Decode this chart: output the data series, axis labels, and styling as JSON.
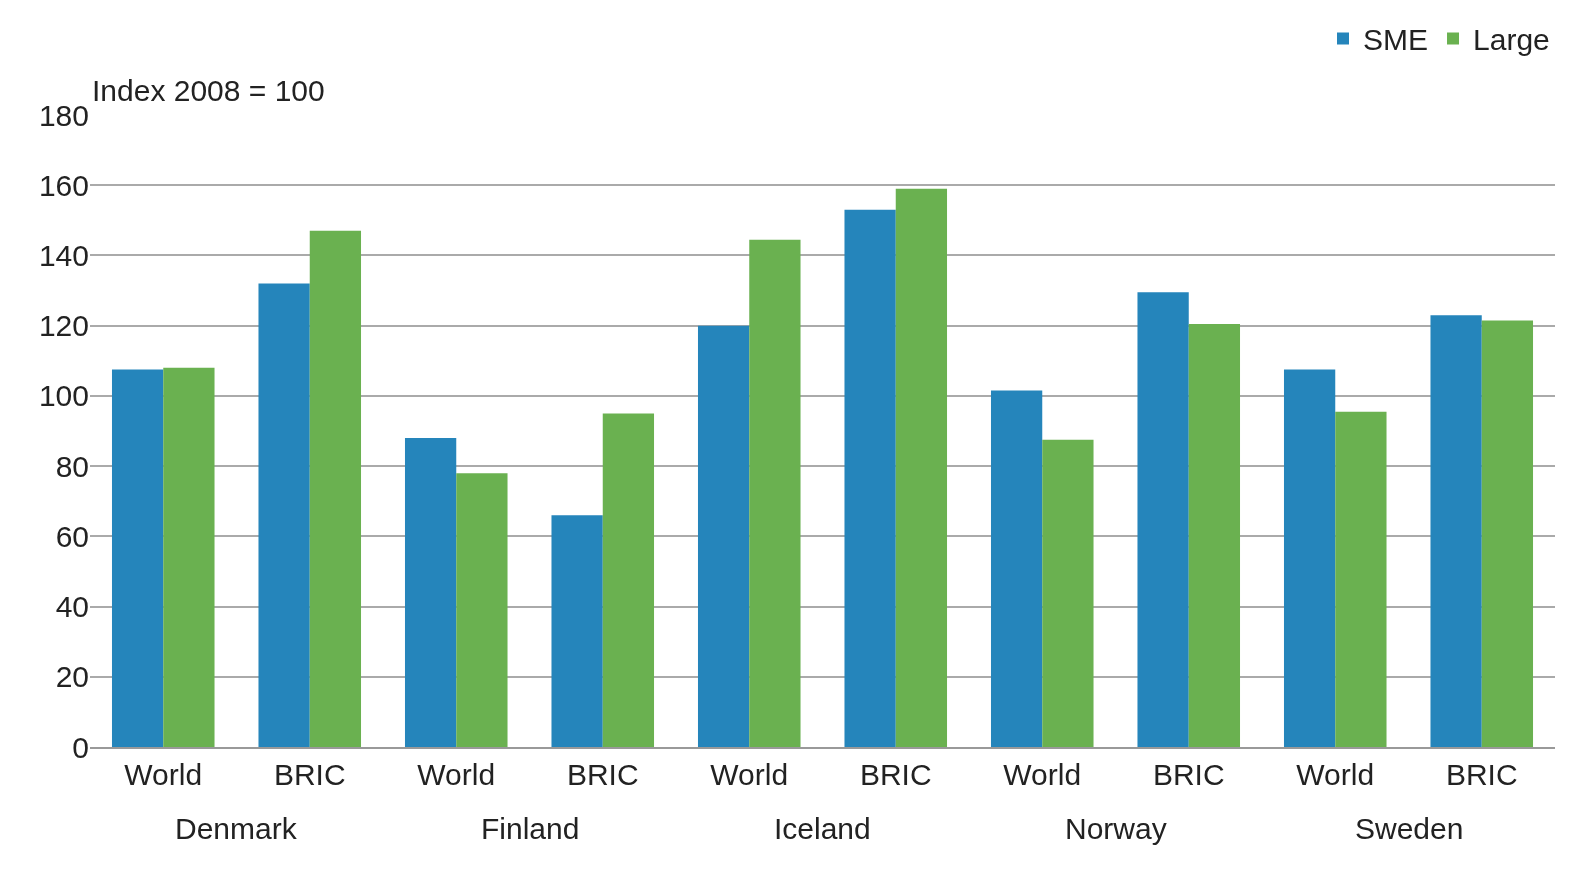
{
  "chart_data": {
    "type": "bar",
    "ylabel": "Index 2008 = 100",
    "categories": [
      "World",
      "BRIC",
      "World",
      "BRIC",
      "World",
      "BRIC",
      "World",
      "BRIC",
      "World",
      "BRIC"
    ],
    "series": [
      {
        "name": "SME",
        "color": "#2585bb",
        "values": [
          107.5,
          132,
          88,
          66,
          120,
          153,
          101.5,
          129.5,
          107.5,
          123
        ]
      },
      {
        "name": "Large",
        "color": "#6ab150",
        "values": [
          108,
          147,
          78,
          95,
          144.5,
          159,
          87.5,
          120.5,
          95.5,
          121.5
        ]
      }
    ],
    "annotations": [
      "Denmark",
      "Finland",
      "Iceland",
      "Norway",
      "Sweden"
    ],
    "ylim": [
      0,
      180
    ],
    "yticks": [
      0,
      20,
      40,
      60,
      80,
      100,
      120,
      140,
      160,
      180
    ],
    "grid": "y",
    "legend": "top right"
  }
}
